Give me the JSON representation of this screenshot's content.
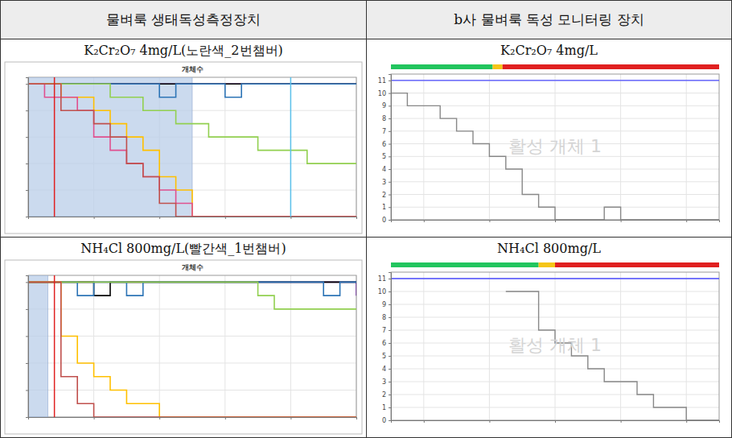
{
  "table": {
    "header": [
      "물벼룩 생태독성측정장치",
      "b사 물벼룩 독성 모니터링 장치"
    ]
  },
  "chart_data": [
    {
      "type": "line",
      "title": "K₂Cr₂O₇ 4mg/L(노란색_2번챔버)",
      "subtitle": "개체수",
      "x": [
        0,
        5,
        10,
        15,
        20,
        25,
        30,
        35,
        40,
        45,
        50,
        55,
        60,
        65,
        70,
        75,
        80,
        85,
        90,
        95,
        100
      ],
      "xlim": [
        0,
        100
      ],
      "xticks": [
        0,
        20,
        40,
        60,
        80,
        100
      ],
      "ylim": [
        0,
        10.5
      ],
      "yticks": [
        0,
        2,
        4,
        6,
        8,
        10
      ],
      "tick_labels": false,
      "grid": true,
      "shade": [
        0,
        50
      ],
      "vlines": [
        {
          "x": 8,
          "color": "#e02020"
        },
        {
          "x": 80,
          "color": "#5bc0eb"
        }
      ],
      "series": [
        {
          "color": "#7030a0",
          "values": [
            10,
            10,
            10,
            10,
            10,
            10,
            10,
            10,
            10,
            10,
            10,
            10,
            10,
            10,
            10,
            10,
            10,
            10,
            10,
            10,
            10
          ]
        },
        {
          "color": "#000000",
          "values": [
            10,
            10,
            10,
            10,
            10,
            10,
            10,
            10,
            10,
            10,
            10,
            10,
            10,
            10,
            10,
            10,
            10,
            10,
            10,
            10,
            10
          ]
        },
        {
          "color": "#2e75b6",
          "values": [
            10,
            10,
            10,
            10,
            10,
            10,
            10,
            10,
            9,
            10,
            10,
            10,
            9,
            10,
            10,
            10,
            10,
            10,
            10,
            10,
            10
          ]
        },
        {
          "color": "#92d050",
          "values": [
            10,
            10,
            10,
            10,
            10,
            9,
            9,
            8,
            8,
            7,
            7,
            6,
            6,
            6,
            5,
            5,
            5,
            4,
            4,
            4,
            4
          ]
        },
        {
          "color": "#ffc000",
          "values": [
            10,
            10,
            9,
            9,
            8,
            7,
            6,
            5,
            3,
            2,
            0,
            0,
            0,
            0,
            0,
            0,
            0,
            0,
            0,
            0,
            0
          ]
        },
        {
          "color": "#e0508f",
          "values": [
            10,
            9,
            9,
            8,
            6,
            5,
            4,
            3,
            2,
            1,
            0,
            0,
            0,
            0,
            0,
            0,
            0,
            0,
            0,
            0,
            0
          ]
        },
        {
          "color": "#c0504d",
          "values": [
            10,
            10,
            8,
            8,
            7,
            6,
            4,
            3,
            1,
            0,
            0,
            0,
            0,
            0,
            0,
            0,
            0,
            0,
            0,
            0,
            0
          ]
        }
      ]
    },
    {
      "type": "line",
      "title": "K₂Cr₂O₇ 4mg/L",
      "annotations": [
        {
          "text": "활성 개체 1"
        }
      ],
      "x": [
        0,
        5,
        10,
        15,
        20,
        25,
        30,
        35,
        40,
        45,
        50,
        55,
        60,
        65,
        70,
        75,
        80,
        85,
        90,
        95,
        100
      ],
      "xlim": [
        0,
        100
      ],
      "xticks": [
        10,
        30,
        50,
        70,
        90
      ],
      "ylim": [
        0,
        11.5
      ],
      "yticks": [
        0,
        1,
        2,
        3,
        4,
        5,
        6,
        7,
        8,
        9,
        10,
        11
      ],
      "tick_labels": "y",
      "grid": true,
      "status_bar": [
        {
          "from": 0,
          "to": 31,
          "color": "#22c55e"
        },
        {
          "from": 31,
          "to": 34,
          "color": "#f5c518"
        },
        {
          "from": 34,
          "to": 100,
          "color": "#e02020"
        }
      ],
      "series": [
        {
          "color": "#4b4bff",
          "values": [
            11,
            11,
            11,
            11,
            11,
            11,
            11,
            11,
            11,
            11,
            11,
            11,
            11,
            11,
            11,
            11,
            11,
            11,
            11,
            11,
            11
          ]
        },
        {
          "color": "#888888",
          "values": [
            10,
            9,
            9,
            8,
            7,
            6,
            5,
            4,
            2,
            1,
            0,
            0,
            0,
            1,
            0,
            0,
            0,
            0,
            0,
            0,
            0
          ]
        }
      ]
    },
    {
      "type": "line",
      "title": "NH₄Cl 800mg/L(빨간색_1번챔버)",
      "subtitle": "개체수",
      "x": [
        0,
        5,
        10,
        15,
        20,
        25,
        30,
        35,
        40,
        45,
        50,
        55,
        60,
        65,
        70,
        75,
        80,
        85,
        90,
        95,
        100
      ],
      "xlim": [
        0,
        100
      ],
      "xticks": [
        0,
        20,
        40,
        60,
        80,
        100
      ],
      "ylim": [
        0,
        10.5
      ],
      "yticks": [
        0,
        2,
        4,
        6,
        8,
        10
      ],
      "tick_labels": false,
      "grid": true,
      "shade": [
        0,
        6
      ],
      "vlines": [
        {
          "x": 8,
          "color": "#e02020"
        }
      ],
      "series": [
        {
          "color": "#7030a0",
          "values": [
            10,
            10,
            10,
            10,
            10,
            10,
            10,
            10,
            10,
            10,
            10,
            10,
            10,
            10,
            10,
            10,
            10,
            10,
            10,
            10,
            9
          ]
        },
        {
          "color": "#000000",
          "values": [
            10,
            10,
            10,
            10,
            9,
            10,
            10,
            10,
            10,
            10,
            10,
            10,
            10,
            10,
            10,
            10,
            10,
            10,
            10,
            10,
            10
          ]
        },
        {
          "color": "#2e75b6",
          "values": [
            10,
            10,
            10,
            9,
            10,
            10,
            9,
            10,
            10,
            10,
            10,
            10,
            10,
            10,
            10,
            10,
            10,
            10,
            9,
            10,
            10
          ]
        },
        {
          "color": "#92d050",
          "values": [
            10,
            10,
            10,
            10,
            10,
            10,
            10,
            10,
            10,
            10,
            10,
            10,
            10,
            10,
            9,
            8,
            8,
            8,
            8,
            8,
            8
          ]
        },
        {
          "color": "#ffc000",
          "values": [
            10,
            10,
            6,
            4,
            3,
            2,
            1,
            1,
            0,
            0,
            0,
            0,
            0,
            0,
            0,
            0,
            0,
            0,
            0,
            0,
            0
          ]
        },
        {
          "color": "#c0504d",
          "values": [
            10,
            10,
            3,
            1,
            0,
            0,
            0,
            0,
            0,
            0,
            0,
            0,
            0,
            0,
            0,
            0,
            0,
            0,
            0,
            0,
            0
          ]
        }
      ]
    },
    {
      "type": "line",
      "title": "NH₄Cl 800mg/L",
      "annotations": [
        {
          "text": "활성 개체 1"
        }
      ],
      "x": [
        0,
        5,
        10,
        15,
        20,
        25,
        30,
        35,
        40,
        45,
        50,
        55,
        60,
        65,
        70,
        75,
        80,
        85,
        90,
        95,
        100
      ],
      "xlim": [
        0,
        100
      ],
      "xticks": [
        10,
        30,
        50,
        70,
        90
      ],
      "ylim": [
        0,
        11.5
      ],
      "yticks": [
        0,
        1,
        2,
        3,
        4,
        5,
        6,
        7,
        8,
        9,
        10,
        11
      ],
      "tick_labels": "y",
      "grid": true,
      "status_bar": [
        {
          "from": 0,
          "to": 45,
          "color": "#22c55e"
        },
        {
          "from": 45,
          "to": 50,
          "color": "#f5c518"
        },
        {
          "from": 50,
          "to": 100,
          "color": "#e02020"
        }
      ],
      "series": [
        {
          "color": "#4b4bff",
          "values": [
            11,
            11,
            11,
            11,
            11,
            11,
            11,
            11,
            11,
            11,
            11,
            11,
            11,
            11,
            11,
            11,
            11,
            11,
            11,
            11,
            11
          ]
        },
        {
          "color": "#888888",
          "values": [
            null,
            null,
            null,
            null,
            null,
            null,
            null,
            10,
            10,
            7,
            6,
            5,
            4,
            3,
            3,
            2,
            1,
            1,
            0,
            0,
            0
          ]
        }
      ]
    }
  ]
}
